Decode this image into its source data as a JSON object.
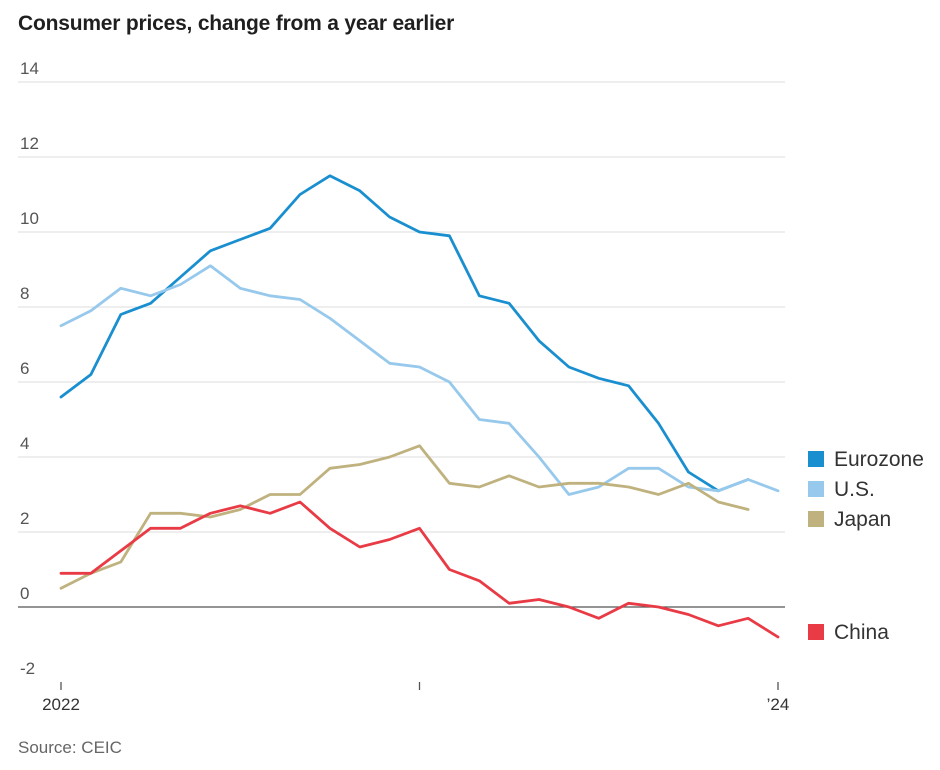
{
  "title": "Consumer prices, change from a year earlier",
  "source": "Source: CEIC",
  "chart_data": {
    "type": "line",
    "title": "Consumer prices, change from a year earlier",
    "xlabel": "",
    "ylabel": "",
    "ylim": [
      -2,
      14
    ],
    "yticks": [
      14,
      12,
      10,
      8,
      6,
      4,
      2,
      0,
      -2
    ],
    "x_tick_labels": [
      "2022",
      "",
      "’24"
    ],
    "grid": true,
    "legend_position": "right",
    "x": [
      "2022-01",
      "2022-02",
      "2022-03",
      "2022-04",
      "2022-05",
      "2022-06",
      "2022-07",
      "2022-08",
      "2022-09",
      "2022-10",
      "2022-11",
      "2022-12",
      "2023-01",
      "2023-02",
      "2023-03",
      "2023-04",
      "2023-05",
      "2023-06",
      "2023-07",
      "2023-08",
      "2023-09",
      "2023-10",
      "2023-11",
      "2023-12",
      "2024-01"
    ],
    "series": [
      {
        "name": "Eurozone",
        "color": "#1a8fd0",
        "values": [
          5.6,
          6.2,
          7.8,
          8.1,
          8.8,
          9.5,
          9.8,
          10.1,
          11.0,
          11.5,
          11.1,
          10.4,
          10.0,
          9.9,
          8.3,
          8.1,
          7.1,
          6.4,
          6.1,
          5.9,
          4.9,
          3.6,
          3.1,
          3.4,
          null
        ]
      },
      {
        "name": "U.S.",
        "color": "#97c9ec",
        "values": [
          7.5,
          7.9,
          8.5,
          8.3,
          8.6,
          9.1,
          8.5,
          8.3,
          8.2,
          7.7,
          7.1,
          6.5,
          6.4,
          6.0,
          5.0,
          4.9,
          4.0,
          3.0,
          3.2,
          3.7,
          3.7,
          3.2,
          3.1,
          3.4,
          3.1
        ]
      },
      {
        "name": "Japan",
        "color": "#bfb27e",
        "values": [
          0.5,
          0.9,
          1.2,
          2.5,
          2.5,
          2.4,
          2.6,
          3.0,
          3.0,
          3.7,
          3.8,
          4.0,
          4.3,
          3.3,
          3.2,
          3.5,
          3.2,
          3.3,
          3.3,
          3.2,
          3.0,
          3.3,
          2.8,
          2.6,
          null
        ]
      },
      {
        "name": "China",
        "color": "#e83b46",
        "values": [
          0.9,
          0.9,
          1.5,
          2.1,
          2.1,
          2.5,
          2.7,
          2.5,
          2.8,
          2.1,
          1.6,
          1.8,
          2.1,
          1.0,
          0.7,
          0.1,
          0.2,
          0.0,
          -0.3,
          0.1,
          0.0,
          -0.2,
          -0.5,
          -0.3,
          -0.8
        ]
      }
    ]
  }
}
